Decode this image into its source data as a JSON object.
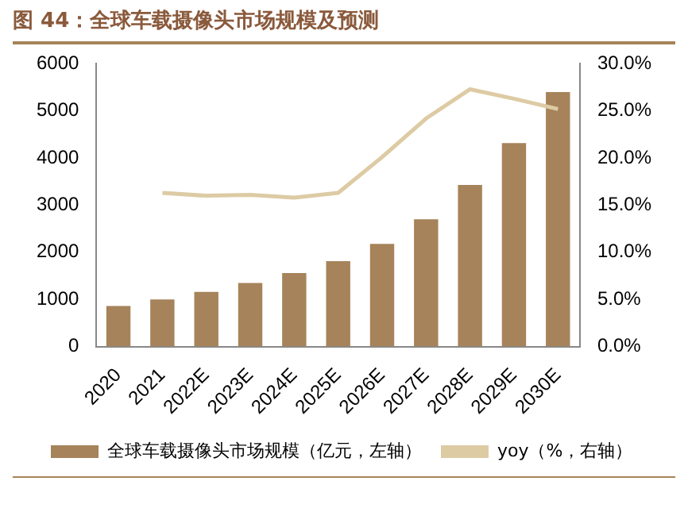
{
  "chart_data": {
    "type": "bar",
    "title": "图 44：全球车载摄像头市场规模及预测",
    "categories": [
      "2020",
      "2021",
      "2022E",
      "2023E",
      "2024E",
      "2025E",
      "2026E",
      "2027E",
      "2028E",
      "2029E",
      "2030E"
    ],
    "series": [
      {
        "name": "全球车载摄像头市场规模（亿元，左轴）",
        "color": "#a6835a",
        "values": [
          860,
          1000,
          1160,
          1350,
          1560,
          1810,
          2180,
          2700,
          3430,
          4320,
          5400
        ]
      },
      {
        "name": "yoy（%，右轴）",
        "type": "line",
        "axis": "y2",
        "color": "#ddcba4",
        "values": [
          null,
          16.3,
          16.0,
          16.1,
          15.8,
          16.3,
          20.1,
          24.2,
          27.3,
          26.3,
          25.2
        ]
      }
    ],
    "ylim": [
      0,
      6000
    ],
    "yticks": [
      0,
      1000,
      2000,
      3000,
      4000,
      5000,
      6000
    ],
    "y2lim": [
      0,
      30
    ],
    "y2ticks": [
      {
        "value": 0,
        "label": "0.0%"
      },
      {
        "value": 5,
        "label": "5.0%"
      },
      {
        "value": 10,
        "label": "10.0%"
      },
      {
        "value": 15,
        "label": "15.0%"
      },
      {
        "value": 20,
        "label": "20.0%"
      },
      {
        "value": 25,
        "label": "25.0%"
      },
      {
        "value": 30,
        "label": "30.0%"
      }
    ],
    "legend": "bottom",
    "grid": false,
    "marker": "none",
    "line_style": "solid"
  }
}
